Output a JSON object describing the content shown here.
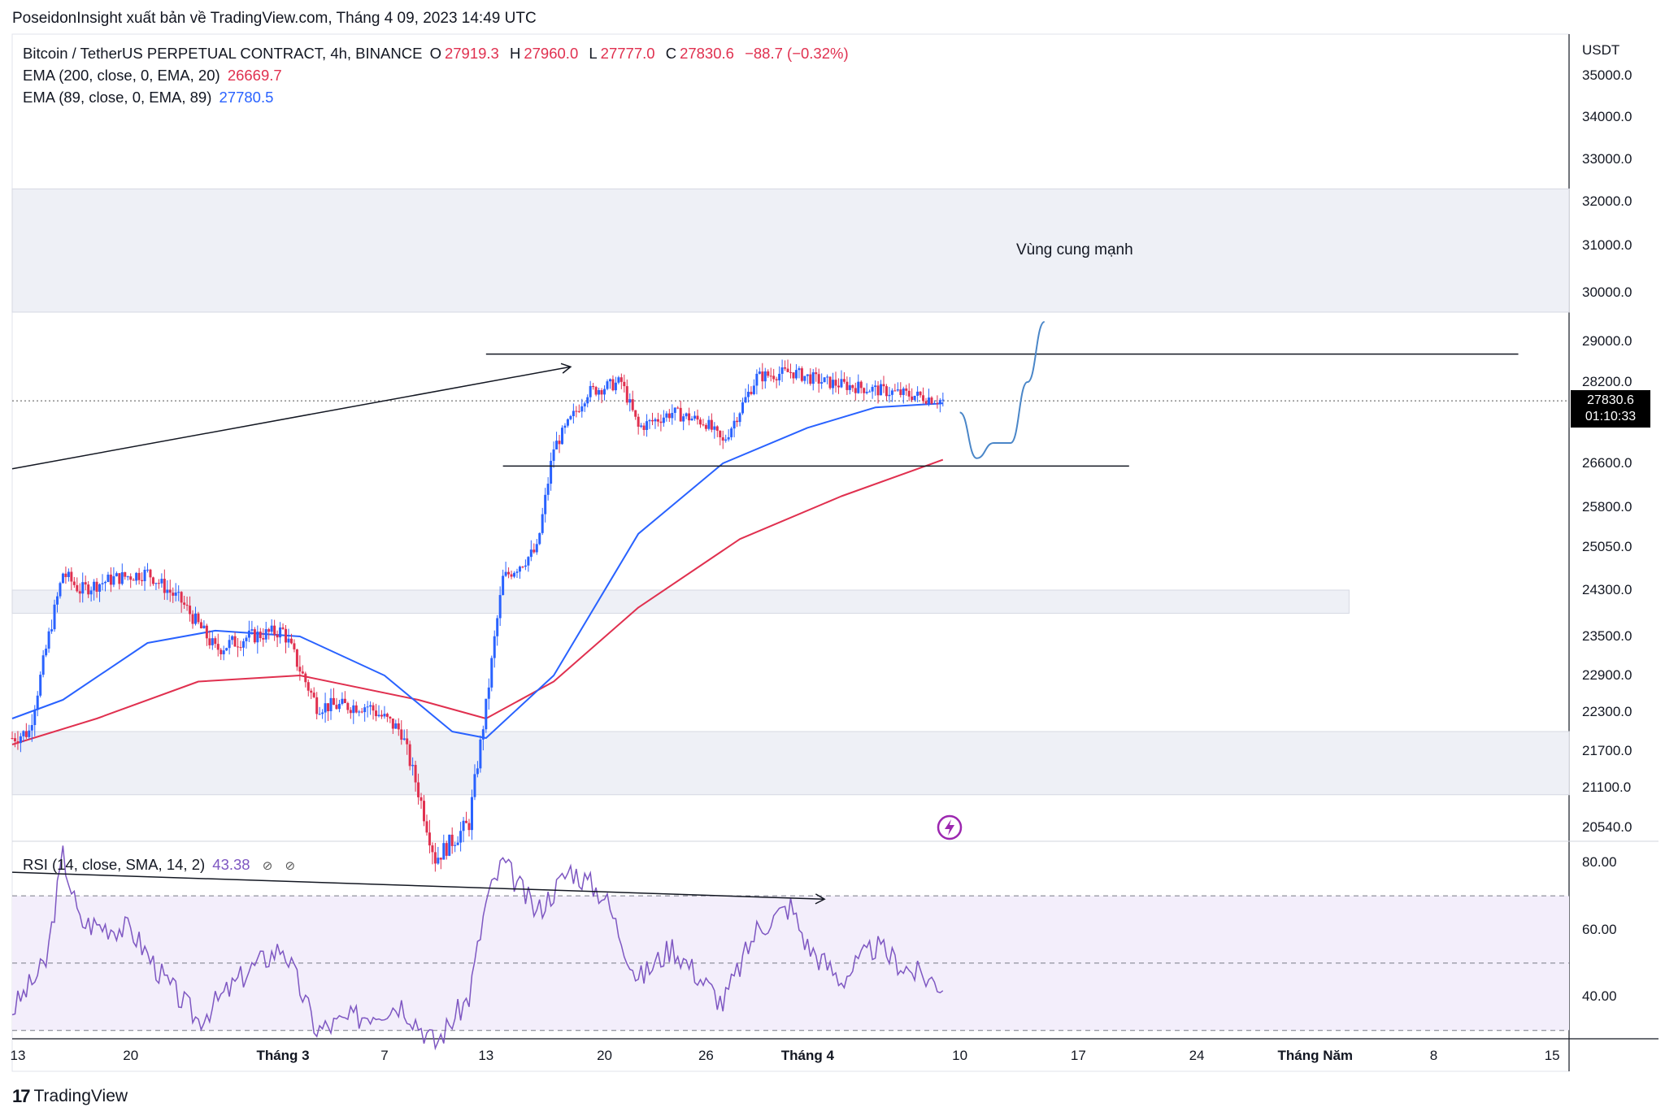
{
  "header": {
    "publish_text": "PoseidonInsight xuất bản về TradingView.com, Tháng 4 09, 2023 14:49 UTC"
  },
  "legend": {
    "symbol": "Bitcoin / TetherUS PERPETUAL CONTRACT, 4h, BINANCE",
    "open_label": "O",
    "open": "27919.3",
    "high_label": "H",
    "high": "27960.0",
    "low_label": "L",
    "low": "27777.0",
    "close_label": "C",
    "close": "27830.6",
    "change": "−88.7 (−0.32%)",
    "ema200_label": "EMA (200, close, 0, EMA, 20)",
    "ema200_value": "26669.7",
    "ema89_label": "EMA (89, close, 0, EMA, 89)",
    "ema89_value": "27780.5",
    "rsi_label": "RSI (14, close, SMA, 14, 2)",
    "rsi_value": "43.38",
    "rsi_icons": [
      "visibility-off-icon",
      "visibility-off-icon"
    ]
  },
  "price_axis": {
    "currency": "USDT",
    "ticks": [
      "35000.0",
      "34000.0",
      "33000.0",
      "32000.0",
      "31000.0",
      "30000.0",
      "29000.0",
      "28200.0",
      "26600.0",
      "25800.0",
      "25050.0",
      "24300.0",
      "23500.0",
      "22900.0",
      "22300.0",
      "21700.0",
      "21100.0",
      "20540.0"
    ],
    "last_price": "27830.6",
    "countdown": "01:10:33"
  },
  "rsi_axis": {
    "ticks": [
      "80.00",
      "60.00",
      "40.00"
    ]
  },
  "time_axis": {
    "labels": [
      "13",
      "20",
      "Tháng 3",
      "7",
      "13",
      "20",
      "26",
      "Tháng 4",
      "10",
      "17",
      "24",
      "Tháng Năm",
      "8",
      "15"
    ],
    "bold_labels": [
      "Tháng 3",
      "Tháng 4",
      "Tháng Năm"
    ]
  },
  "annotations": {
    "zone_label": "Vùng cung mạnh"
  },
  "footer": {
    "brand": "TradingView",
    "logo_mark": "17"
  },
  "colors": {
    "bull": "#2962ff",
    "bear": "#e0304f",
    "ema89": "#2962ff",
    "ema200": "#e0304f",
    "rsi_line": "#7e57c2",
    "rsi_band": "#f3eefb",
    "zone": "#eef0f6",
    "forecast": "#4a86c8"
  },
  "chart_data": {
    "type": "candlestick",
    "symbol": "BTCUSDT.P",
    "interval": "4h",
    "x_range": [
      "2023-02-13",
      "2023-05-16"
    ],
    "y_range": [
      20300,
      36000
    ],
    "price_path": [
      {
        "x": "2023-02-13",
        "y": 21900
      },
      {
        "x": "2023-02-14",
        "y": 22000
      },
      {
        "x": "2023-02-16",
        "y": 24600
      },
      {
        "x": "2023-02-17",
        "y": 24300
      },
      {
        "x": "2023-02-19",
        "y": 24500
      },
      {
        "x": "2023-02-21",
        "y": 24600
      },
      {
        "x": "2023-02-23",
        "y": 24100
      },
      {
        "x": "2023-02-25",
        "y": 23300
      },
      {
        "x": "2023-02-27",
        "y": 23500
      },
      {
        "x": "2023-03-01",
        "y": 23600
      },
      {
        "x": "2023-03-03",
        "y": 22400
      },
      {
        "x": "2023-03-06",
        "y": 22400
      },
      {
        "x": "2023-03-08",
        "y": 22000
      },
      {
        "x": "2023-03-10",
        "y": 20100
      },
      {
        "x": "2023-03-12",
        "y": 20600
      },
      {
        "x": "2023-03-13",
        "y": 22400
      },
      {
        "x": "2023-03-14",
        "y": 24500
      },
      {
        "x": "2023-03-16",
        "y": 25000
      },
      {
        "x": "2023-03-17",
        "y": 26900
      },
      {
        "x": "2023-03-19",
        "y": 28000
      },
      {
        "x": "2023-03-21",
        "y": 28200
      },
      {
        "x": "2023-03-22",
        "y": 27300
      },
      {
        "x": "2023-03-24",
        "y": 27600
      },
      {
        "x": "2023-03-26",
        "y": 27400
      },
      {
        "x": "2023-03-27",
        "y": 27000
      },
      {
        "x": "2023-03-29",
        "y": 28300
      },
      {
        "x": "2023-03-31",
        "y": 28400
      },
      {
        "x": "2023-04-02",
        "y": 28200
      },
      {
        "x": "2023-04-04",
        "y": 28100
      },
      {
        "x": "2023-04-06",
        "y": 28000
      },
      {
        "x": "2023-04-08",
        "y": 27900
      },
      {
        "x": "2023-04-09",
        "y": 27830.6
      }
    ],
    "ema200_path": [
      {
        "x": "2023-02-13",
        "y": 21800
      },
      {
        "x": "2023-02-18",
        "y": 22200
      },
      {
        "x": "2023-02-24",
        "y": 22800
      },
      {
        "x": "2023-03-02",
        "y": 22900
      },
      {
        "x": "2023-03-09",
        "y": 22500
      },
      {
        "x": "2023-03-13",
        "y": 22200
      },
      {
        "x": "2023-03-17",
        "y": 22800
      },
      {
        "x": "2023-03-22",
        "y": 24000
      },
      {
        "x": "2023-03-28",
        "y": 25200
      },
      {
        "x": "2023-04-03",
        "y": 26000
      },
      {
        "x": "2023-04-09",
        "y": 26669.7
      }
    ],
    "ema89_path": [
      {
        "x": "2023-02-13",
        "y": 22200
      },
      {
        "x": "2023-02-16",
        "y": 22500
      },
      {
        "x": "2023-02-21",
        "y": 23400
      },
      {
        "x": "2023-02-25",
        "y": 23600
      },
      {
        "x": "2023-03-02",
        "y": 23500
      },
      {
        "x": "2023-03-07",
        "y": 22900
      },
      {
        "x": "2023-03-11",
        "y": 22000
      },
      {
        "x": "2023-03-13",
        "y": 21900
      },
      {
        "x": "2023-03-17",
        "y": 22900
      },
      {
        "x": "2023-03-22",
        "y": 25300
      },
      {
        "x": "2023-03-27",
        "y": 26600
      },
      {
        "x": "2023-04-01",
        "y": 27300
      },
      {
        "x": "2023-04-05",
        "y": 27700
      },
      {
        "x": "2023-04-09",
        "y": 27780.5
      }
    ],
    "forecast_path": [
      {
        "x": "2023-04-10",
        "y": 27600
      },
      {
        "x": "2023-04-11",
        "y": 26700
      },
      {
        "x": "2023-04-12",
        "y": 27000
      },
      {
        "x": "2023-04-13",
        "y": 27000
      },
      {
        "x": "2023-04-14",
        "y": 28200
      },
      {
        "x": "2023-04-15",
        "y": 29400
      }
    ],
    "zones": [
      {
        "name": "Vùng cung mạnh",
        "y_from": 29600,
        "y_to": 32300,
        "x_from": "2023-02-13",
        "x_to": "2023-05-16"
      },
      {
        "y_from": 23900,
        "y_to": 24300,
        "x_from": "2023-02-13",
        "x_to": "2023-05-03"
      },
      {
        "y_from": 21000,
        "y_to": 22000,
        "x_from": "2023-02-13",
        "x_to": "2023-05-16"
      }
    ],
    "lines": [
      {
        "x1": "2023-02-13",
        "y1": 26500,
        "x2": "2023-03-18",
        "y2": 28500,
        "arrow": true
      },
      {
        "x1": "2023-03-13",
        "y1": 28750,
        "x2": "2023-05-13",
        "y2": 28750
      },
      {
        "x1": "2023-03-14",
        "y1": 26550,
        "x2": "2023-04-20",
        "y2": 26550
      }
    ],
    "rsi": {
      "y_range": [
        28,
        85
      ],
      "bands": [
        70,
        50,
        30
      ],
      "path": [
        {
          "x": "2023-02-13",
          "y": 36
        },
        {
          "x": "2023-02-15",
          "y": 50
        },
        {
          "x": "2023-02-16",
          "y": 82
        },
        {
          "x": "2023-02-17",
          "y": 62
        },
        {
          "x": "2023-02-20",
          "y": 60
        },
        {
          "x": "2023-02-22",
          "y": 45
        },
        {
          "x": "2023-02-24",
          "y": 33
        },
        {
          "x": "2023-02-27",
          "y": 48
        },
        {
          "x": "2023-03-01",
          "y": 55
        },
        {
          "x": "2023-03-03",
          "y": 30
        },
        {
          "x": "2023-03-06",
          "y": 35
        },
        {
          "x": "2023-03-08",
          "y": 38
        },
        {
          "x": "2023-03-10",
          "y": 26
        },
        {
          "x": "2023-03-12",
          "y": 40
        },
        {
          "x": "2023-03-13",
          "y": 68
        },
        {
          "x": "2023-03-14",
          "y": 80
        },
        {
          "x": "2023-03-16",
          "y": 65
        },
        {
          "x": "2023-03-18",
          "y": 78
        },
        {
          "x": "2023-03-20",
          "y": 70
        },
        {
          "x": "2023-03-22",
          "y": 45
        },
        {
          "x": "2023-03-24",
          "y": 55
        },
        {
          "x": "2023-03-27",
          "y": 38
        },
        {
          "x": "2023-03-29",
          "y": 60
        },
        {
          "x": "2023-03-31",
          "y": 67
        },
        {
          "x": "2023-04-01",
          "y": 55
        },
        {
          "x": "2023-04-03",
          "y": 45
        },
        {
          "x": "2023-04-05",
          "y": 55
        },
        {
          "x": "2023-04-07",
          "y": 48
        },
        {
          "x": "2023-04-09",
          "y": 43.38
        }
      ],
      "divergence_line": {
        "x1": "2023-02-13",
        "y1": 77,
        "x2": "2023-04-02",
        "y2": 69,
        "arrow": true
      }
    }
  }
}
